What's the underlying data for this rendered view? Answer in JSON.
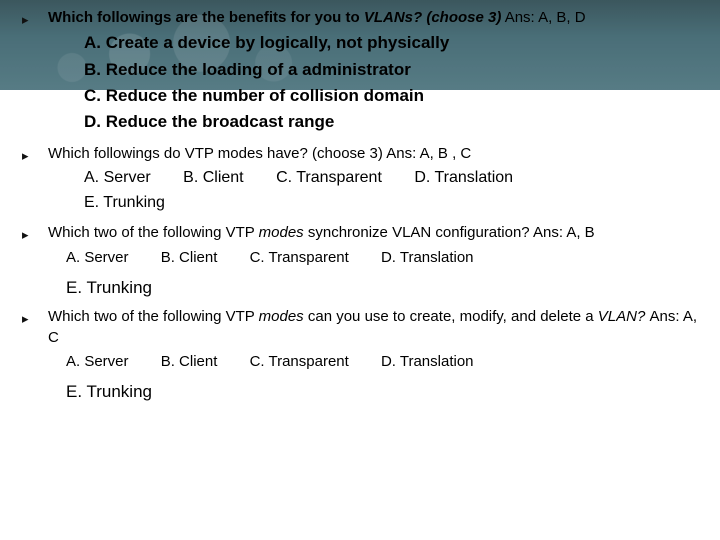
{
  "questions": [
    {
      "bullet": "▸",
      "prompt_a": "Which followings are the benefits for you to ",
      "prompt_italic": "VLANs? (choose 3)",
      "prompt_b": "  Ans: A, B, D",
      "options": [
        "A. Create a device by logically, not physically",
        "B. Reduce the loading of a administrator",
        "C. Reduce the number of collision domain",
        "D. Reduce the broadcast range"
      ]
    },
    {
      "bullet": "▸",
      "prompt_a": "Which followings do VTP modes have? (choose 3) Ans: A, B , C",
      "inline_options_row1": [
        "A. Server",
        "B. Client",
        "C. Transparent",
        "D. Translation"
      ],
      "inline_options_row2": "E. Trunking"
    },
    {
      "bullet": "▸",
      "prompt_a": "Which two of the following VTP ",
      "prompt_italic": "modes ",
      "prompt_b": "synchronize VLAN configuration?  Ans: A, B",
      "inline_options_row1": [
        "A. Server",
        "B. Client",
        "C. Transparent",
        "D. Translation"
      ],
      "standalone": "E. Trunking"
    },
    {
      "bullet": "▸",
      "prompt_a": "Which two of the following VTP ",
      "prompt_italic": "modes ",
      "prompt_b": "can you use to create, modify, and delete a ",
      "prompt_italic2": "VLAN? ",
      "prompt_c": "Ans: A, C",
      "inline_options_row1": [
        "A. Server",
        "B. Client",
        "C. Transparent",
        "D. Translation"
      ],
      "standalone": "E. Trunking"
    }
  ]
}
